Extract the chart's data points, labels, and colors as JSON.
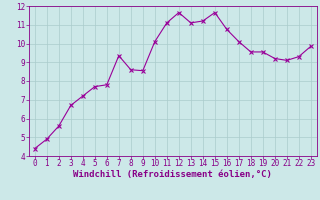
{
  "x": [
    0,
    1,
    2,
    3,
    4,
    5,
    6,
    7,
    8,
    9,
    10,
    11,
    12,
    13,
    14,
    15,
    16,
    17,
    18,
    19,
    20,
    21,
    22,
    23
  ],
  "y": [
    4.4,
    4.9,
    5.6,
    6.7,
    7.2,
    7.7,
    7.8,
    9.35,
    8.6,
    8.55,
    10.1,
    11.1,
    11.65,
    11.1,
    11.2,
    11.65,
    10.75,
    10.1,
    9.55,
    9.55,
    9.2,
    9.1,
    9.3,
    9.85
  ],
  "line_color": "#990099",
  "marker": "x",
  "marker_size": 3,
  "marker_linewidth": 0.8,
  "bg_color": "#cce8e8",
  "grid_color": "#aacccc",
  "xlabel": "Windchill (Refroidissement éolien,°C)",
  "ylim": [
    4,
    12
  ],
  "xlim": [
    -0.5,
    23.5
  ],
  "yticks": [
    4,
    5,
    6,
    7,
    8,
    9,
    10,
    11,
    12
  ],
  "xticks": [
    0,
    1,
    2,
    3,
    4,
    5,
    6,
    7,
    8,
    9,
    10,
    11,
    12,
    13,
    14,
    15,
    16,
    17,
    18,
    19,
    20,
    21,
    22,
    23
  ],
  "tick_color": "#880088",
  "label_color": "#880088",
  "tick_fontsize": 5.5,
  "xlabel_fontsize": 6.5,
  "spine_color": "#880088",
  "linewidth": 0.8
}
